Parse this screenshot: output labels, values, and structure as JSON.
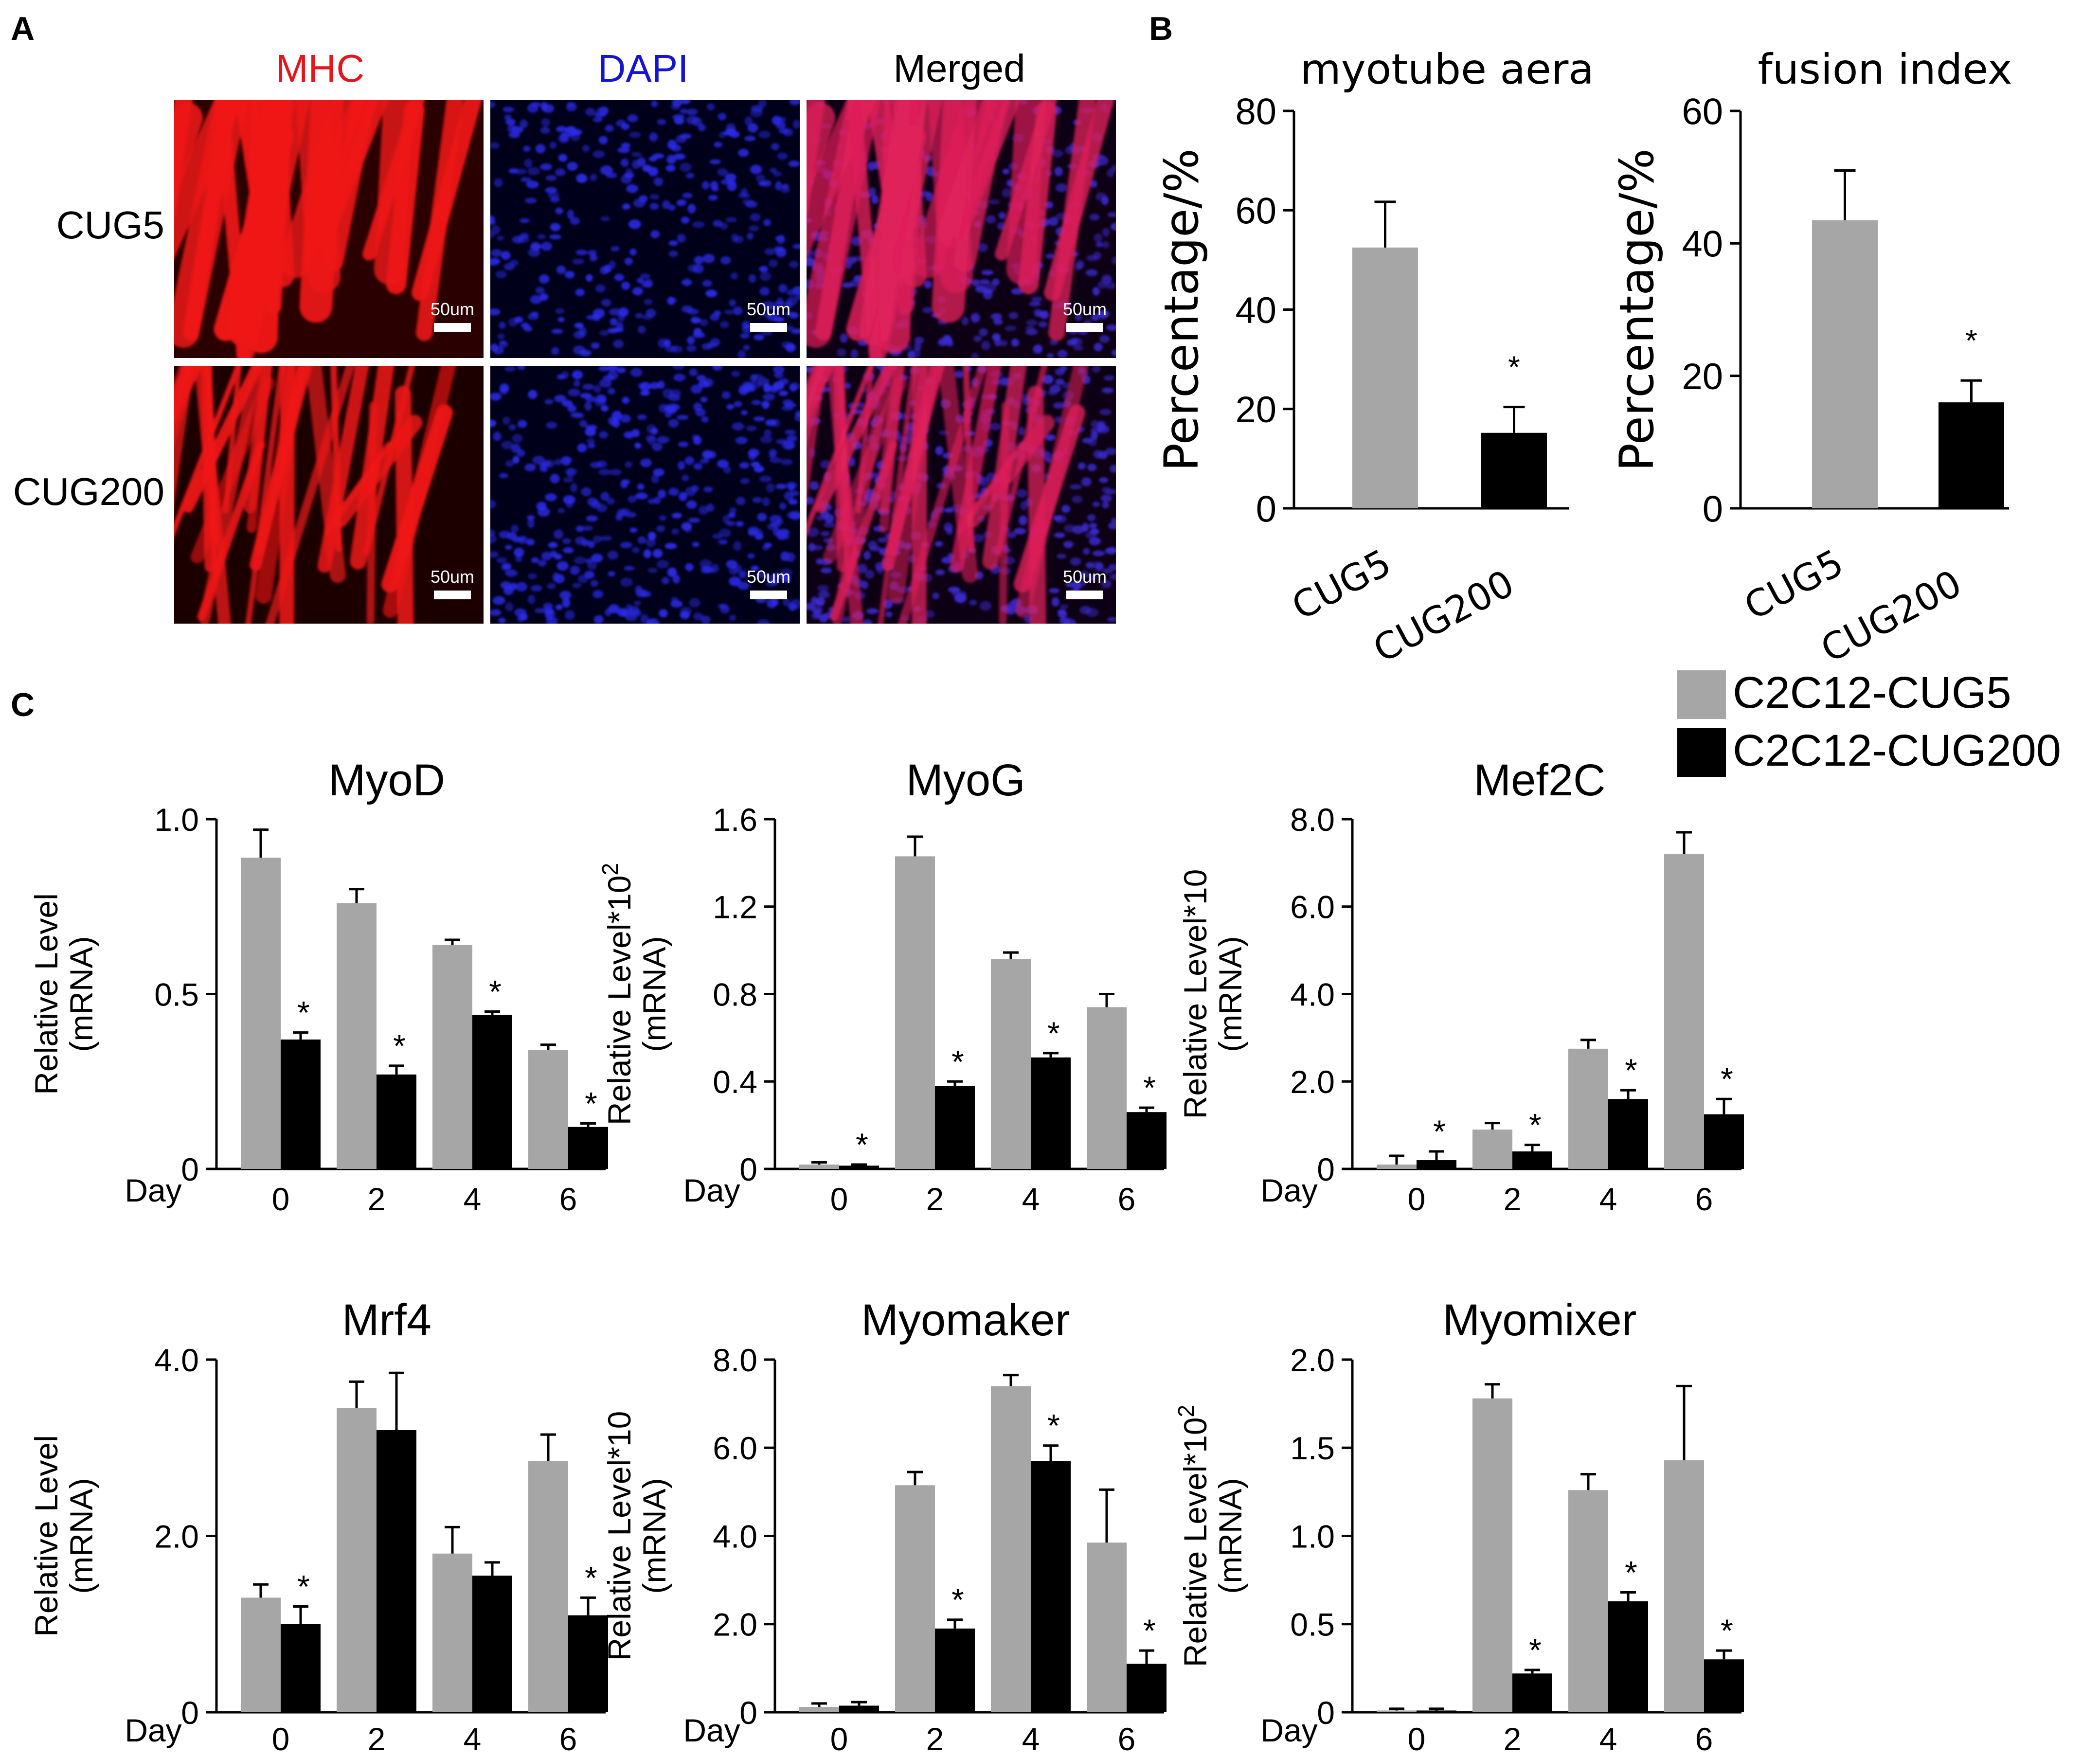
{
  "colors": {
    "cug5_bar": "#a6a6a6",
    "cug200_bar": "#000000",
    "mhc_label": "#e8141b",
    "dapi_label": "#1414d2",
    "merged_label": "#000000",
    "axis": "#000000"
  },
  "panel_a": {
    "letter": "A",
    "columns": [
      "MHC",
      "DAPI",
      "Merged"
    ],
    "rows": [
      "CUG5",
      "CUG200"
    ],
    "scale_bar": "50um"
  },
  "panel_b": {
    "letter": "B",
    "charts": [
      {
        "title": "myotube aera",
        "ylabel": "Percentage/%",
        "yticks": [
          "0",
          "20",
          "40",
          "60",
          "80"
        ],
        "star": "*",
        "chart_data": {
          "type": "bar",
          "categories": [
            "CUG5",
            "CUG200"
          ],
          "values": [
            52.5,
            15.2
          ],
          "errors": [
            9.2,
            5.2
          ],
          "significant": [
            false,
            true
          ],
          "ylim": [
            0,
            80
          ]
        }
      },
      {
        "title": "fusion index",
        "ylabel": "Percentage/%",
        "yticks": [
          "0",
          "20",
          "40",
          "60"
        ],
        "star": "*",
        "chart_data": {
          "type": "bar",
          "categories": [
            "CUG5",
            "CUG200"
          ],
          "values": [
            43.5,
            16.0
          ],
          "errors": [
            7.5,
            3.3
          ],
          "significant": [
            false,
            true
          ],
          "ylim": [
            0,
            60
          ]
        }
      }
    ]
  },
  "panel_c": {
    "letter": "C",
    "legend": [
      "C2C12-CUG5",
      "C2C12-CUG200"
    ],
    "x_prefix": "Day",
    "categories": [
      "0",
      "2",
      "4",
      "6"
    ],
    "star": "*",
    "charts": [
      {
        "title": "MyoD",
        "ylabel1": "Relative Level",
        "ylabel_exp": "",
        "ylabel2": "(mRNA)",
        "yticks": [
          "0",
          "0.5",
          "1.0"
        ],
        "chart_data": {
          "type": "bar",
          "x": [
            "0",
            "2",
            "4",
            "6"
          ],
          "ylim": [
            0,
            1.0
          ],
          "series": [
            {
              "name": "C2C12-CUG5",
              "values": [
                0.89,
                0.76,
                0.64,
                0.34
              ],
              "errors": [
                0.08,
                0.04,
                0.015,
                0.015
              ]
            },
            {
              "name": "C2C12-CUG200",
              "values": [
                0.37,
                0.27,
                0.44,
                0.12
              ],
              "errors": [
                0.02,
                0.025,
                0.01,
                0.01
              ]
            }
          ],
          "significant": [
            true,
            true,
            true,
            true
          ]
        }
      },
      {
        "title": "MyoG",
        "ylabel1": "Relative Level*10",
        "ylabel_exp": "2",
        "ylabel2": "(mRNA)",
        "yticks": [
          "0",
          "0.4",
          "0.8",
          "1.2",
          "1.6"
        ],
        "chart_data": {
          "type": "bar",
          "x": [
            "0",
            "2",
            "4",
            "6"
          ],
          "ylim": [
            0,
            1.6
          ],
          "series": [
            {
              "name": "C2C12-CUG5",
              "values": [
                0.02,
                1.43,
                0.96,
                0.74
              ],
              "errors": [
                0.01,
                0.09,
                0.03,
                0.06
              ]
            },
            {
              "name": "C2C12-CUG200",
              "values": [
                0.015,
                0.38,
                0.51,
                0.26
              ],
              "errors": [
                0.005,
                0.02,
                0.02,
                0.02
              ]
            }
          ],
          "significant": [
            true,
            true,
            true,
            true
          ]
        }
      },
      {
        "title": "Mef2C",
        "ylabel1": "Relative Level*10",
        "ylabel_exp": "",
        "ylabel2": "(mRNA)",
        "yticks": [
          "0",
          "2.0",
          "4.0",
          "6.0",
          "8.0"
        ],
        "chart_data": {
          "type": "bar",
          "x": [
            "0",
            "2",
            "4",
            "6"
          ],
          "ylim": [
            0,
            8.0
          ],
          "series": [
            {
              "name": "C2C12-CUG5",
              "values": [
                0.1,
                0.9,
                2.75,
                7.2
              ],
              "errors": [
                0.2,
                0.15,
                0.2,
                0.5
              ]
            },
            {
              "name": "C2C12-CUG200",
              "values": [
                0.2,
                0.4,
                1.6,
                1.25
              ],
              "errors": [
                0.2,
                0.15,
                0.2,
                0.35
              ]
            }
          ],
          "significant": [
            true,
            true,
            true,
            true
          ]
        }
      },
      {
        "title": "Mrf4",
        "ylabel1": "Relative Level",
        "ylabel_exp": "",
        "ylabel2": "(mRNA)",
        "yticks": [
          "0",
          "2.0",
          "4.0"
        ],
        "chart_data": {
          "type": "bar",
          "x": [
            "0",
            "2",
            "4",
            "6"
          ],
          "ylim": [
            0,
            4.0
          ],
          "series": [
            {
              "name": "C2C12-CUG5",
              "values": [
                1.3,
                3.45,
                1.8,
                2.85
              ],
              "errors": [
                0.15,
                0.3,
                0.3,
                0.3
              ]
            },
            {
              "name": "C2C12-CUG200",
              "values": [
                1.0,
                3.2,
                1.55,
                1.1
              ],
              "errors": [
                0.2,
                0.65,
                0.15,
                0.2
              ]
            }
          ],
          "significant": [
            true,
            false,
            false,
            true
          ]
        }
      },
      {
        "title": "Myomaker",
        "ylabel1": "Relative Level*10",
        "ylabel_exp": "",
        "ylabel2": "(mRNA)",
        "yticks": [
          "0",
          "2.0",
          "4.0",
          "6.0",
          "8.0"
        ],
        "chart_data": {
          "type": "bar",
          "x": [
            "0",
            "2",
            "4",
            "6"
          ],
          "ylim": [
            0,
            8.0
          ],
          "series": [
            {
              "name": "C2C12-CUG5",
              "values": [
                0.12,
                5.15,
                7.4,
                3.85
              ],
              "errors": [
                0.08,
                0.3,
                0.25,
                1.2
              ]
            },
            {
              "name": "C2C12-CUG200",
              "values": [
                0.15,
                1.9,
                5.7,
                1.1
              ],
              "errors": [
                0.08,
                0.2,
                0.35,
                0.3
              ]
            }
          ],
          "significant": [
            false,
            true,
            true,
            true
          ]
        }
      },
      {
        "title": "Myomixer",
        "ylabel1": "Relative Level*10",
        "ylabel_exp": "2",
        "ylabel2": "(mRNA)",
        "yticks": [
          "0",
          "0.5",
          "1.0",
          "1.5",
          "2.0"
        ],
        "chart_data": {
          "type": "bar",
          "x": [
            "0",
            "2",
            "4",
            "6"
          ],
          "ylim": [
            0,
            2.0
          ],
          "series": [
            {
              "name": "C2C12-CUG5",
              "values": [
                0.01,
                1.78,
                1.26,
                1.43
              ],
              "errors": [
                0.01,
                0.08,
                0.09,
                0.42
              ]
            },
            {
              "name": "C2C12-CUG200",
              "values": [
                0.01,
                0.22,
                0.63,
                0.3
              ],
              "errors": [
                0.01,
                0.02,
                0.05,
                0.05
              ]
            }
          ],
          "significant": [
            false,
            true,
            true,
            true
          ]
        }
      }
    ]
  }
}
